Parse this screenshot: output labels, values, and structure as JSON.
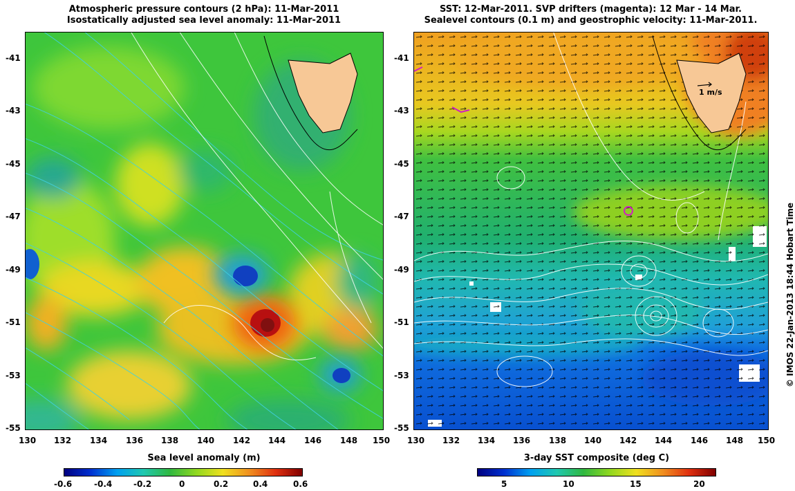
{
  "left_panel": {
    "title_line1": "Atmospheric pressure contours (2 hPa): 11-Mar-2011",
    "title_line2": "Isostatically adjusted sea level anomaly: 11-Mar-2011",
    "colorbar_title": "Sea level anomaly (m)",
    "colorbar_ticks": [
      "-0.6",
      "-0.4",
      "-0.2",
      "0",
      "0.2",
      "0.4",
      "0.6"
    ]
  },
  "right_panel": {
    "title_line1": "SST: 12-Mar-2011. SVP drifters (magenta): 12 Mar - 14 Mar.",
    "title_line2": "Sealevel contours (0.1 m) and geostrophic velocity: 11-Mar-2011.",
    "colorbar_title": "3-day SST composite (deg C)",
    "colorbar_ticks": [
      "5",
      "10",
      "15",
      "20"
    ],
    "velocity_scale_label": "1 m/s"
  },
  "axes": {
    "lon_ticks": [
      "130",
      "132",
      "134",
      "136",
      "138",
      "140",
      "142",
      "144",
      "146",
      "148",
      "150"
    ],
    "lat_ticks": [
      "-41",
      "-43",
      "-45",
      "-47",
      "-49",
      "-51",
      "-53",
      "-55"
    ]
  },
  "credit": "© IMOS 22-Jan-2013 18:44 Hobart Time",
  "colors": {
    "land": "#f7c896",
    "drifter": "#d020c0",
    "contour": "#ffffff",
    "pressure_contour": "#40d0e0"
  },
  "map_extent": {
    "lon": [
      130,
      150
    ],
    "lat": [
      -55,
      -40
    ]
  }
}
